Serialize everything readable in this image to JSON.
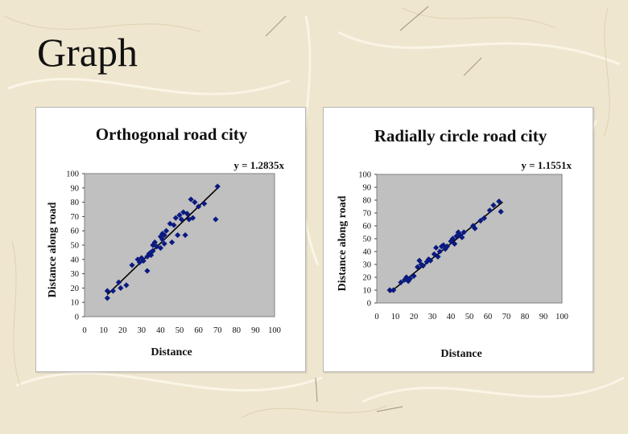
{
  "slide": {
    "title": "Graph"
  },
  "chart_data": [
    {
      "type": "scatter",
      "title": "Orthogonal road city",
      "xlabel": "Distance",
      "ylabel": "Distance along road",
      "xlim": [
        0,
        100
      ],
      "ylim": [
        0,
        100
      ],
      "xticks": [
        0,
        10,
        20,
        30,
        40,
        50,
        60,
        70,
        80,
        90,
        100
      ],
      "yticks": [
        0,
        10,
        20,
        30,
        40,
        50,
        60,
        70,
        80,
        90,
        100
      ],
      "plot_background": "#c0c0c0",
      "marker_color": "#0b1a80",
      "trendline": {
        "label": "y = 1.2835x",
        "slope": 1.2835,
        "x_range": [
          12,
          70
        ]
      },
      "series": [
        {
          "name": "points",
          "x": [
            12,
            12,
            15,
            18,
            19,
            22,
            25,
            28,
            29,
            30,
            31,
            33,
            33,
            34,
            35,
            35,
            36,
            36,
            37,
            38,
            40,
            40,
            41,
            41,
            42,
            42,
            43,
            45,
            46,
            47,
            48,
            49,
            50,
            51,
            52,
            53,
            54,
            55,
            56,
            57,
            58,
            60,
            63,
            69,
            70
          ],
          "y": [
            18,
            13,
            18,
            24,
            20,
            22,
            36,
            40,
            38,
            41,
            39,
            32,
            42,
            44,
            43,
            45,
            50,
            46,
            52,
            49,
            56,
            48,
            54,
            58,
            51,
            57,
            60,
            65,
            52,
            64,
            69,
            57,
            71,
            68,
            73,
            57,
            72,
            68,
            82,
            69,
            80,
            77,
            79,
            68,
            91
          ]
        }
      ]
    },
    {
      "type": "scatter",
      "title": "Radially circle road city",
      "xlabel": "Distance",
      "ylabel": "Distance along road",
      "xlim": [
        0,
        100
      ],
      "ylim": [
        0,
        100
      ],
      "xticks": [
        0,
        10,
        20,
        30,
        40,
        50,
        60,
        70,
        80,
        90,
        100
      ],
      "yticks": [
        0,
        10,
        20,
        30,
        40,
        50,
        60,
        70,
        80,
        90,
        100
      ],
      "plot_background": "#c0c0c0",
      "marker_color": "#0b1a80",
      "trendline": {
        "label": "y = 1.1551x",
        "slope": 1.1551,
        "x_range": [
          7,
          68
        ]
      },
      "series": [
        {
          "name": "points",
          "x": [
            7,
            9,
            13,
            15,
            16,
            17,
            18,
            20,
            22,
            23,
            24,
            25,
            27,
            28,
            29,
            31,
            32,
            33,
            34,
            35,
            36,
            37,
            38,
            40,
            41,
            42,
            43,
            44,
            45,
            46,
            47,
            52,
            53,
            56,
            58,
            61,
            63,
            66,
            67
          ],
          "y": [
            10,
            10,
            16,
            18,
            20,
            17,
            19,
            21,
            28,
            33,
            30,
            29,
            32,
            34,
            33,
            38,
            43,
            36,
            40,
            44,
            45,
            42,
            44,
            48,
            50,
            46,
            52,
            55,
            53,
            51,
            55,
            60,
            58,
            64,
            66,
            72,
            76,
            79,
            71
          ]
        }
      ]
    }
  ]
}
